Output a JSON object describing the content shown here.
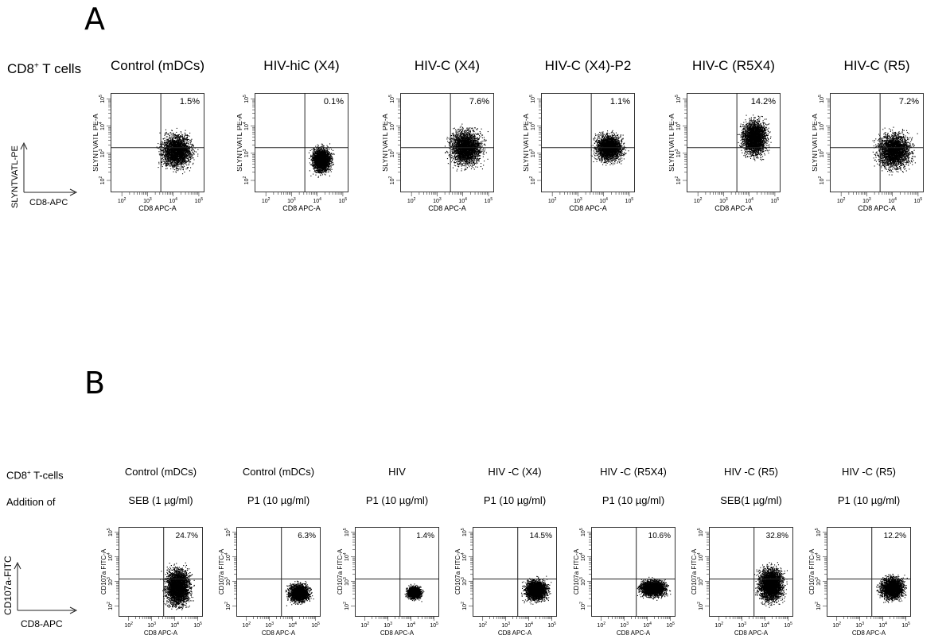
{
  "panel_a": {
    "letter": "A",
    "row_label_main": "CD8",
    "row_label_sup": "+",
    "row_label_rest": " T cells",
    "legend_y": "SLYNTVATL-PE",
    "legend_x": "CD8-APC"
  },
  "panel_b": {
    "letter": "B",
    "row1_label_main": "CD8",
    "row1_label_sup": "+",
    "row1_label_rest": " T-cells",
    "row2_label": "Addition of",
    "legend_y": "CD107a-FITC",
    "legend_x": "CD8-APC"
  },
  "colors": {
    "dots": "#000000",
    "axes": "#222222",
    "background": "#ffffff"
  },
  "chart_data": [
    {
      "type": "scatter",
      "panel": "A",
      "title": "Control (mDCs)",
      "xlabel": "CD8 APC-A",
      "ylabel": "SLYNTVATL PE-A",
      "upper_right_percent": "1.5%",
      "x_scale": "log",
      "y_scale": "log",
      "xticks": [
        "10^2",
        "10^3",
        "10^4",
        "10^5"
      ],
      "yticks": [
        "10^2",
        "10^3",
        "10^4",
        "10^5"
      ],
      "cloud": {
        "x_center": 0.7,
        "y_center": 0.42,
        "x_spread": 0.16,
        "y_spread": 0.16,
        "density": 2600
      }
    },
    {
      "type": "scatter",
      "panel": "A",
      "title": "HIV-hiC (X4)",
      "xlabel": "CD8 APC-A",
      "ylabel": "SLYNTVATL PE-A",
      "upper_right_percent": "0.1%",
      "x_scale": "log",
      "y_scale": "log",
      "xticks": [
        "10^2",
        "10^3",
        "10^4",
        "10^5"
      ],
      "yticks": [
        "10^2",
        "10^3",
        "10^4",
        "10^5"
      ],
      "cloud": {
        "x_center": 0.71,
        "y_center": 0.33,
        "x_spread": 0.1,
        "y_spread": 0.12,
        "density": 2200
      }
    },
    {
      "type": "scatter",
      "panel": "A",
      "title": "HIV-C (X4)",
      "xlabel": "CD8 APC-A",
      "ylabel": "SLYNTVATL PE-A",
      "upper_right_percent": "7.6%",
      "x_scale": "log",
      "y_scale": "log",
      "xticks": [
        "10^2",
        "10^3",
        "10^4",
        "10^5"
      ],
      "yticks": [
        "10^2",
        "10^3",
        "10^4",
        "10^5"
      ],
      "cloud": {
        "x_center": 0.7,
        "y_center": 0.45,
        "x_spread": 0.16,
        "y_spread": 0.17,
        "density": 2800
      }
    },
    {
      "type": "scatter",
      "panel": "A",
      "title": "HIV-C (X4)-P2",
      "xlabel": "CD8 APC-A",
      "ylabel": "SLYNTVATL PE-A",
      "upper_right_percent": "1.1%",
      "x_scale": "log",
      "y_scale": "log",
      "xticks": [
        "10^2",
        "10^3",
        "10^4",
        "10^5"
      ],
      "yticks": [
        "10^2",
        "10^3",
        "10^4",
        "10^5"
      ],
      "cloud": {
        "x_center": 0.72,
        "y_center": 0.45,
        "x_spread": 0.14,
        "y_spread": 0.13,
        "density": 2400
      }
    },
    {
      "type": "scatter",
      "panel": "A",
      "title": "HIV-C (R5X4)",
      "xlabel": "CD8 APC-A",
      "ylabel": "SLYNTVATL PE-A",
      "upper_right_percent": "14.2%",
      "x_scale": "log",
      "y_scale": "log",
      "xticks": [
        "10^2",
        "10^3",
        "10^4",
        "10^5"
      ],
      "yticks": [
        "10^2",
        "10^3",
        "10^4",
        "10^5"
      ],
      "cloud": {
        "x_center": 0.72,
        "y_center": 0.55,
        "x_spread": 0.13,
        "y_spread": 0.17,
        "density": 2800
      }
    },
    {
      "type": "scatter",
      "panel": "A",
      "title": "HIV-C (R5)",
      "xlabel": "CD8 APC-A",
      "ylabel": "SLYNTVATL PE-A",
      "upper_right_percent": "7.2%",
      "x_scale": "log",
      "y_scale": "log",
      "xticks": [
        "10^2",
        "10^3",
        "10^4",
        "10^5"
      ],
      "yticks": [
        "10^2",
        "10^3",
        "10^4",
        "10^5"
      ],
      "cloud": {
        "x_center": 0.68,
        "y_center": 0.42,
        "x_spread": 0.17,
        "y_spread": 0.17,
        "density": 2800
      }
    },
    {
      "type": "scatter",
      "panel": "B",
      "title": "Control (mDCs)",
      "subtitle": "SEB (1 µg/ml)",
      "xlabel": "CD8 APC-A",
      "ylabel": "CD107a FITC-A",
      "upper_right_percent": "24.7%",
      "x_scale": "log",
      "y_scale": "log",
      "xticks": [
        "10^2",
        "10^3",
        "10^4",
        "10^5"
      ],
      "yticks": [
        "10^2",
        "10^3",
        "10^4",
        "10^5"
      ],
      "cloud": {
        "x_center": 0.7,
        "y_center": 0.33,
        "x_spread": 0.14,
        "y_spread": 0.2,
        "density": 3200
      }
    },
    {
      "type": "scatter",
      "panel": "B",
      "title": "Control (mDCs)",
      "subtitle": "P1 (10 µg/ml)",
      "xlabel": "CD8 APC-A",
      "ylabel": "CD107a FITC-A",
      "upper_right_percent": "6.3%",
      "x_scale": "log",
      "y_scale": "log",
      "xticks": [
        "10^2",
        "10^3",
        "10^4",
        "10^5"
      ],
      "yticks": [
        "10^2",
        "10^3",
        "10^4",
        "10^5"
      ],
      "cloud": {
        "x_center": 0.74,
        "y_center": 0.27,
        "x_spread": 0.12,
        "y_spread": 0.1,
        "density": 2000
      }
    },
    {
      "type": "scatter",
      "panel": "B",
      "title": "HIV",
      "subtitle": "P1 (10 µg/ml)",
      "xlabel": "CD8 APC-A",
      "ylabel": "CD107a FITC-A",
      "upper_right_percent": "1.4%",
      "x_scale": "log",
      "y_scale": "log",
      "xticks": [
        "10^2",
        "10^3",
        "10^4",
        "10^5"
      ],
      "yticks": [
        "10^2",
        "10^3",
        "10^4",
        "10^5"
      ],
      "cloud": {
        "x_center": 0.7,
        "y_center": 0.27,
        "x_spread": 0.08,
        "y_spread": 0.07,
        "density": 1600
      }
    },
    {
      "type": "scatter",
      "panel": "B",
      "title": "HIV -C (X4)",
      "subtitle": "P1 (10 µg/ml)",
      "xlabel": "CD8 APC-A",
      "ylabel": "CD107a FITC-A",
      "upper_right_percent": "14.5%",
      "x_scale": "log",
      "y_scale": "log",
      "xticks": [
        "10^2",
        "10^3",
        "10^4",
        "10^5"
      ],
      "yticks": [
        "10^2",
        "10^3",
        "10^4",
        "10^5"
      ],
      "cloud": {
        "x_center": 0.75,
        "y_center": 0.3,
        "x_spread": 0.13,
        "y_spread": 0.11,
        "density": 2400
      }
    },
    {
      "type": "scatter",
      "panel": "B",
      "title": "HIV -C (R5X4)",
      "subtitle": "P1 (10 µg/ml)",
      "xlabel": "CD8 APC-A",
      "ylabel": "CD107a FITC-A",
      "upper_right_percent": "10.6%",
      "x_scale": "log",
      "y_scale": "log",
      "xticks": [
        "10^2",
        "10^3",
        "10^4",
        "10^5"
      ],
      "yticks": [
        "10^2",
        "10^3",
        "10^4",
        "10^5"
      ],
      "cloud": {
        "x_center": 0.73,
        "y_center": 0.32,
        "x_spread": 0.15,
        "y_spread": 0.09,
        "density": 2400
      }
    },
    {
      "type": "scatter",
      "panel": "B",
      "title": "HIV -C (R5)",
      "subtitle": "SEB(1 µg/ml)",
      "xlabel": "CD8 APC-A",
      "ylabel": "CD107a FITC-A",
      "upper_right_percent": "32.8%",
      "x_scale": "log",
      "y_scale": "log",
      "xticks": [
        "10^2",
        "10^3",
        "10^4",
        "10^5"
      ],
      "yticks": [
        "10^2",
        "10^3",
        "10^4",
        "10^5"
      ],
      "cloud": {
        "x_center": 0.73,
        "y_center": 0.36,
        "x_spread": 0.14,
        "y_spread": 0.18,
        "density": 3200
      }
    },
    {
      "type": "scatter",
      "panel": "B",
      "title": "HIV -C (R5)",
      "subtitle": "P1 (10 µg/ml)",
      "xlabel": "CD8 APC-A",
      "ylabel": "CD107a FITC-A",
      "upper_right_percent": "12.2%",
      "x_scale": "log",
      "y_scale": "log",
      "xticks": [
        "10^2",
        "10^3",
        "10^4",
        "10^5"
      ],
      "yticks": [
        "10^2",
        "10^3",
        "10^4",
        "10^5"
      ],
      "cloud": {
        "x_center": 0.77,
        "y_center": 0.32,
        "x_spread": 0.14,
        "y_spread": 0.12,
        "density": 2400
      }
    }
  ]
}
